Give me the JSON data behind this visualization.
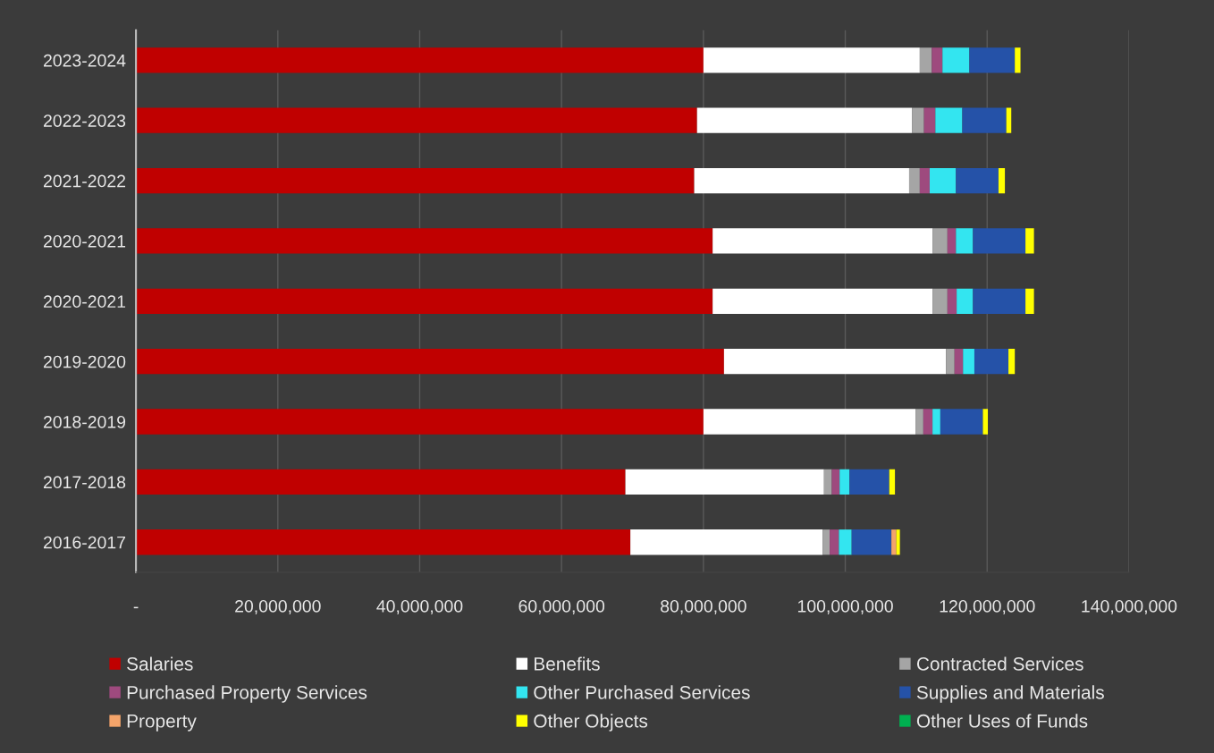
{
  "chart_data": {
    "type": "bar",
    "orientation": "horizontal",
    "stacked": true,
    "categories": [
      "2023-2024",
      "2022-2023",
      "2021-2022",
      "2020-2021",
      "2020-2021",
      "2019-2020",
      "2018-2019",
      "2017-2018",
      "2016-2017"
    ],
    "series": [
      {
        "name": "Salaries",
        "color": "#c00000",
        "values": [
          80000000,
          79100000,
          78700000,
          81300000,
          81300000,
          82900000,
          80000000,
          69000000,
          69700000
        ]
      },
      {
        "name": "Benefits",
        "color": "#ffffff",
        "values": [
          30500000,
          30300000,
          30300000,
          31000000,
          31000000,
          31300000,
          29900000,
          28000000,
          27100000
        ]
      },
      {
        "name": "Contracted Services",
        "color": "#a5a5a5",
        "values": [
          1700000,
          1700000,
          1500000,
          2100000,
          2100000,
          1200000,
          1100000,
          1100000,
          1000000
        ]
      },
      {
        "name": "Purchased Property Services",
        "color": "#9e4a7e",
        "values": [
          1500000,
          1600000,
          1400000,
          1200000,
          1300000,
          1200000,
          1300000,
          1100000,
          1300000
        ]
      },
      {
        "name": "Other Purchased Services",
        "color": "#33e5f0",
        "values": [
          3800000,
          3800000,
          3700000,
          2400000,
          2300000,
          1600000,
          1100000,
          1400000,
          1800000
        ]
      },
      {
        "name": "Supplies and Materials",
        "color": "#2552a8",
        "values": [
          6400000,
          6200000,
          6000000,
          7400000,
          7400000,
          4800000,
          6000000,
          5600000,
          5600000
        ]
      },
      {
        "name": "Property",
        "color": "#f4a46a",
        "values": [
          0,
          0,
          0,
          0,
          0,
          0,
          0,
          0,
          700000
        ]
      },
      {
        "name": "Other Objects",
        "color": "#ffff00",
        "values": [
          800000,
          700000,
          900000,
          1200000,
          1200000,
          900000,
          700000,
          800000,
          500000
        ]
      },
      {
        "name": "Other Uses of Funds",
        "color": "#00b050",
        "values": [
          0,
          0,
          0,
          0,
          0,
          0,
          0,
          0,
          0
        ]
      }
    ],
    "xlim": [
      0,
      140000000
    ],
    "xticks": [
      {
        "value": 0,
        "label": "-"
      },
      {
        "value": 20000000,
        "label": "20,000,000"
      },
      {
        "value": 40000000,
        "label": "40,000,000"
      },
      {
        "value": 60000000,
        "label": "60,000,000"
      },
      {
        "value": 80000000,
        "label": "80,000,000"
      },
      {
        "value": 100000000,
        "label": "100,000,000"
      },
      {
        "value": 120000000,
        "label": "120,000,000"
      },
      {
        "value": 140000000,
        "label": "140,000,000"
      }
    ],
    "grid": "x",
    "legend": "bottom"
  }
}
